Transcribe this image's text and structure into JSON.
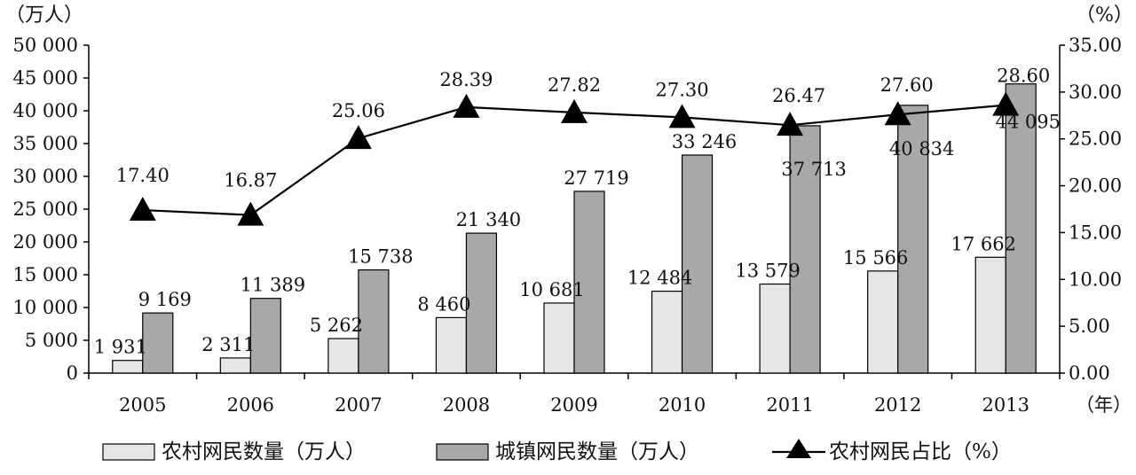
{
  "chart_data": {
    "type": "bar",
    "categories": [
      "2005",
      "2006",
      "2007",
      "2008",
      "2009",
      "2010",
      "2011",
      "2012",
      "2013"
    ],
    "x_unit": "（年）",
    "left_axis": {
      "unit": "（万人）",
      "ylim": [
        0,
        50000
      ],
      "ticks": [
        "0",
        "5 000",
        "10 000",
        "15 000",
        "20 000",
        "25 000",
        "30 000",
        "35 000",
        "40 000",
        "45 000",
        "50 000"
      ]
    },
    "right_axis": {
      "unit": "（%）",
      "ylim": [
        0,
        35
      ],
      "ticks": [
        "0.00",
        "5.00",
        "10.00",
        "15.00",
        "20.00",
        "25.00",
        "30.00",
        "35.00"
      ]
    },
    "series": [
      {
        "name": "农村网民数量（万人）",
        "type": "bar",
        "axis": "left",
        "color": "#e6e6e6",
        "values": [
          1931,
          2311,
          5262,
          8460,
          10681,
          12484,
          13579,
          15566,
          17662
        ],
        "labels": [
          "1 931",
          "2 311",
          "5 262",
          "8 460",
          "10 681",
          "12 484",
          "13 579",
          "15 566",
          "17 662"
        ]
      },
      {
        "name": "城镇网民数量（万人）",
        "type": "bar",
        "axis": "left",
        "color": "#a8a8a8",
        "values": [
          9169,
          11389,
          15738,
          21340,
          27719,
          33246,
          37713,
          40834,
          44095
        ],
        "labels": [
          "9 169",
          "11 389",
          "15 738",
          "21 340",
          "27 719",
          "33 246",
          "37 713",
          "40 834",
          "44 095"
        ]
      },
      {
        "name": "农村网民占比（%）",
        "type": "line",
        "axis": "right",
        "marker": "triangle",
        "color": "#000000",
        "values": [
          17.4,
          16.87,
          25.06,
          28.39,
          27.82,
          27.3,
          26.47,
          27.6,
          28.6
        ],
        "labels": [
          "17.40",
          "16.87",
          "25.06",
          "28.39",
          "27.82",
          "27.30",
          "26.47",
          "27.60",
          "28.60"
        ]
      }
    ],
    "legend_position": "bottom",
    "grid": false
  }
}
